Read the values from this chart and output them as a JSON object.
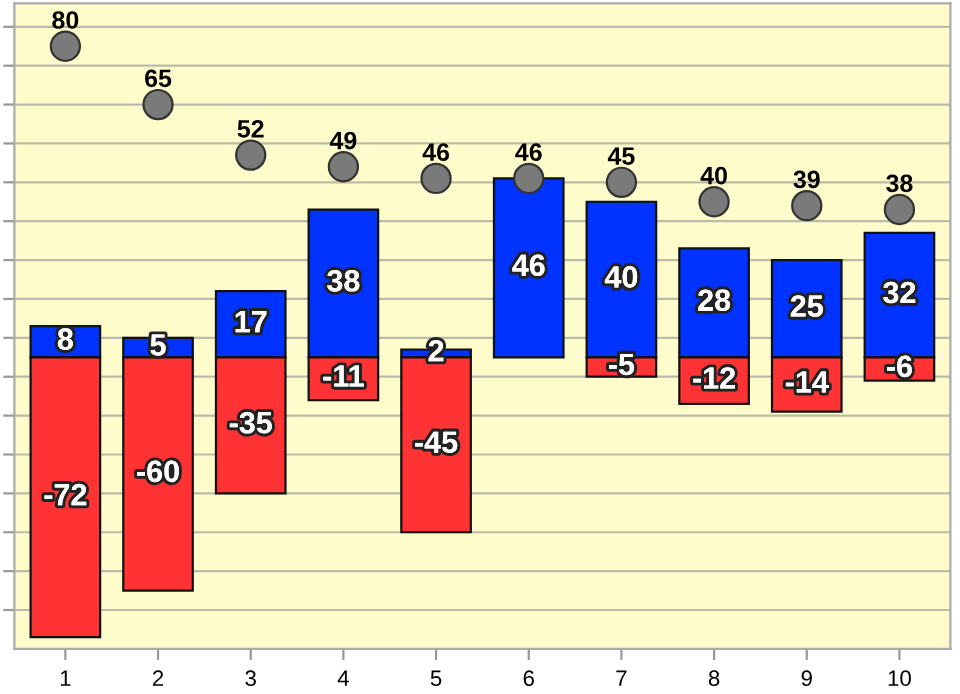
{
  "chart_data": {
    "type": "bar",
    "stacked": true,
    "categories": [
      "1",
      "2",
      "3",
      "4",
      "5",
      "6",
      "7",
      "8",
      "9",
      "10"
    ],
    "series": [
      {
        "color": "#0033ff",
        "values": [
          8,
          5,
          17,
          38,
          2,
          46,
          40,
          28,
          25,
          32
        ]
      },
      {
        "color": "#ff3333",
        "values": [
          -72,
          -60,
          -35,
          -11,
          -45,
          null,
          -5,
          -12,
          -14,
          -6
        ]
      },
      {
        "type": "scatter",
        "color": "#7a7a7a",
        "values": [
          80,
          65,
          52,
          49,
          46,
          46,
          45,
          40,
          39,
          38
        ]
      }
    ],
    "ylim": [
      -75,
      91
    ],
    "yticks": [
      {
        "value": -65,
        "label": null
      },
      {
        "value": -55,
        "label": null
      },
      {
        "value": -45,
        "label": null
      },
      {
        "value": -35,
        "label": null
      },
      {
        "value": -25,
        "label": null
      },
      {
        "value": -15,
        "label": null
      },
      {
        "value": -5,
        "label": null
      },
      {
        "value": 5,
        "label": null
      },
      {
        "value": 15,
        "label": null
      },
      {
        "value": 25,
        "label": null
      },
      {
        "value": 35,
        "label": null
      },
      {
        "value": 45,
        "label": null
      },
      {
        "value": 55,
        "label": null
      },
      {
        "value": 65,
        "label": null
      },
      {
        "value": 75,
        "label": null
      },
      {
        "value": 85,
        "label": null
      }
    ],
    "data_labels": true,
    "grid": "y",
    "tick_labels": "x",
    "marker": "circle"
  }
}
